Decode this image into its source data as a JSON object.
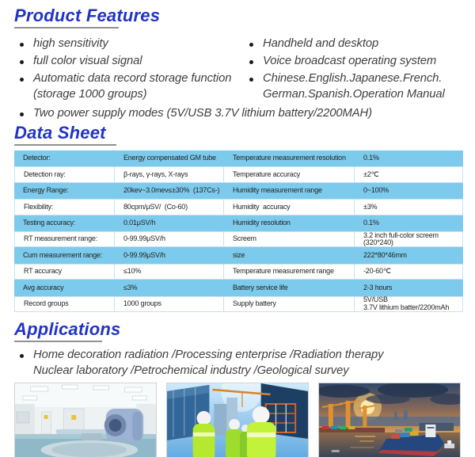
{
  "product_features": {
    "title": "Product Features",
    "left_items": [
      "high sensitivity",
      "full color visual signal",
      "Automatic data record storage function\n(storage 1000 groups)"
    ],
    "right_items": [
      "Handheld and desktop",
      "Voice broadcast operating system",
      "Chinese.English.Japanese.French.\nGerman.Spanish.Operation Manual"
    ],
    "bottom_item": "Two power supply modes (5V/USB 3.7V lithium battery/2200MAH)"
  },
  "data_sheet": {
    "title": "Data Sheet",
    "rows": [
      [
        "Detector:",
        "Energy compensated GM tube",
        "Temperature measurement resolution",
        "0.1%"
      ],
      [
        "Detection ray:",
        "β-rays, γ-rays, X-rays",
        "Temperature accuracy",
        "±2℃"
      ],
      [
        "Energy Range:",
        "20kev~3.0mev≤±30%  (137Cs-)",
        "Humidity measurement range",
        "0~100%"
      ],
      [
        "Flexibility:",
        "80cpm/μSV/  (Co-60)",
        "Humidity  accuracy",
        "±3%"
      ],
      [
        "Testing accuracy:",
        "0.01μSV/h",
        "Humidity resolution",
        "0.1%"
      ],
      [
        "RT measurement range:",
        "0-99.99μSV/h",
        "Screem",
        "3.2 inch full-color screem\n(320*240)"
      ],
      [
        "Cum measurement range:",
        "0-99.99μSV/h",
        "size",
        "222*80*46mm"
      ],
      [
        "RT accuracy",
        "≤10%",
        "Temperature measurement range",
        "-20-60℃"
      ],
      [
        "Avg accuracy",
        "≤3%",
        "Battery service life",
        "2-3 hours"
      ],
      [
        "Record groups",
        "1000 groups",
        "Supply battery",
        "5V/USB\n3.7V lithium batter/2200mAh"
      ]
    ]
  },
  "applications": {
    "title": "Applications",
    "text": "Home decoration radiation /Processing enterprise /Radiation therapy\nNuclear laboratory /Petrochemical industry /Geological survey",
    "photos": [
      "radiation-therapy-room-photo",
      "construction-site-photo",
      "cargo-port-photo"
    ]
  },
  "colors": {
    "heading_blue": "#2134c4",
    "table_row_blue": "#7dcbec",
    "table_border_blue": "#c2e4f6"
  }
}
